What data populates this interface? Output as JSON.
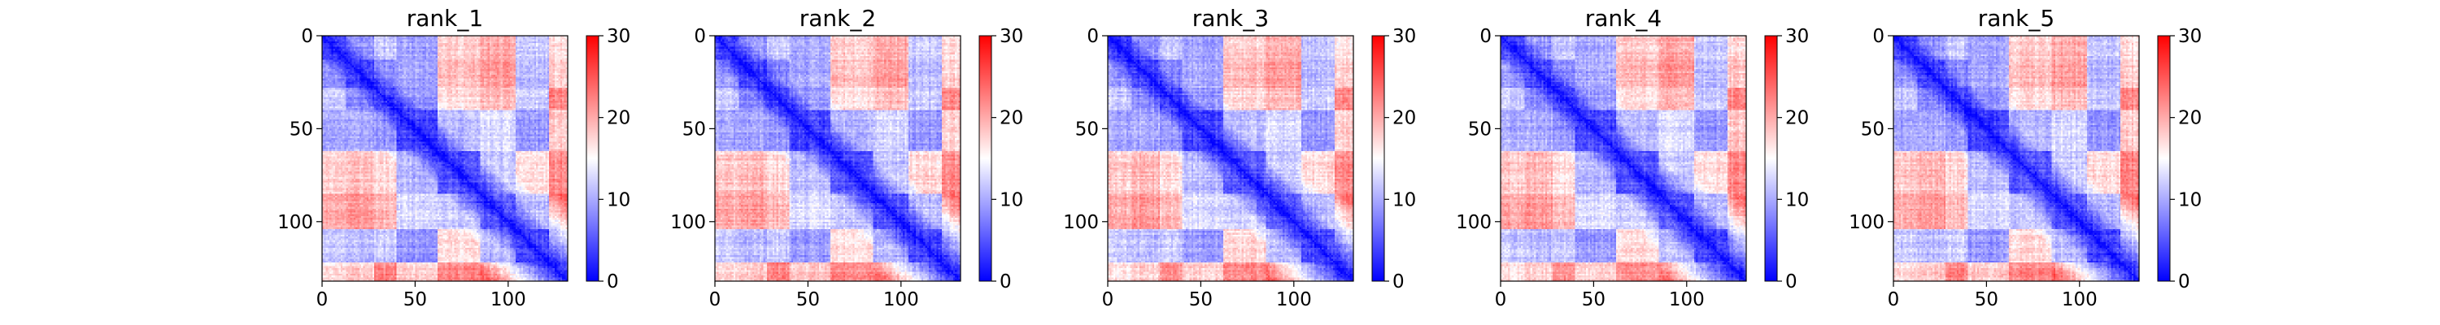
{
  "figure": {
    "background": "#ffffff"
  },
  "colormap": {
    "name": "bwr",
    "low": "#0000ff",
    "mid": "#ffffff",
    "high": "#ff0000"
  },
  "chart_data": [
    {
      "type": "heatmap",
      "title": "rank_1",
      "xlim": [
        0,
        132
      ],
      "ylim": [
        132,
        0
      ],
      "clim": [
        0,
        30
      ],
      "x_ticks": [
        0,
        50,
        100
      ],
      "y_ticks": [
        0,
        50,
        100
      ],
      "colorbar_ticks": [
        0,
        10,
        20,
        30
      ],
      "grid": false,
      "seed": 11
    },
    {
      "type": "heatmap",
      "title": "rank_2",
      "xlim": [
        0,
        132
      ],
      "ylim": [
        132,
        0
      ],
      "clim": [
        0,
        30
      ],
      "x_ticks": [
        0,
        50,
        100
      ],
      "y_ticks": [
        0,
        50,
        100
      ],
      "colorbar_ticks": [
        0,
        10,
        20,
        30
      ],
      "grid": false,
      "seed": 23
    },
    {
      "type": "heatmap",
      "title": "rank_3",
      "xlim": [
        0,
        132
      ],
      "ylim": [
        132,
        0
      ],
      "clim": [
        0,
        30
      ],
      "x_ticks": [
        0,
        50,
        100
      ],
      "y_ticks": [
        0,
        50,
        100
      ],
      "colorbar_ticks": [
        0,
        10,
        20,
        30
      ],
      "grid": false,
      "seed": 37
    },
    {
      "type": "heatmap",
      "title": "rank_4",
      "xlim": [
        0,
        132
      ],
      "ylim": [
        132,
        0
      ],
      "clim": [
        0,
        30
      ],
      "x_ticks": [
        0,
        50,
        100
      ],
      "y_ticks": [
        0,
        50,
        100
      ],
      "colorbar_ticks": [
        0,
        10,
        20,
        30
      ],
      "grid": false,
      "seed": 41
    },
    {
      "type": "heatmap",
      "title": "rank_5",
      "xlim": [
        0,
        132
      ],
      "ylim": [
        132,
        0
      ],
      "clim": [
        0,
        30
      ],
      "x_ticks": [
        0,
        50,
        100
      ],
      "y_ticks": [
        0,
        50,
        100
      ],
      "colorbar_ticks": [
        0,
        10,
        20,
        30
      ],
      "grid": false,
      "seed": 53
    }
  ]
}
